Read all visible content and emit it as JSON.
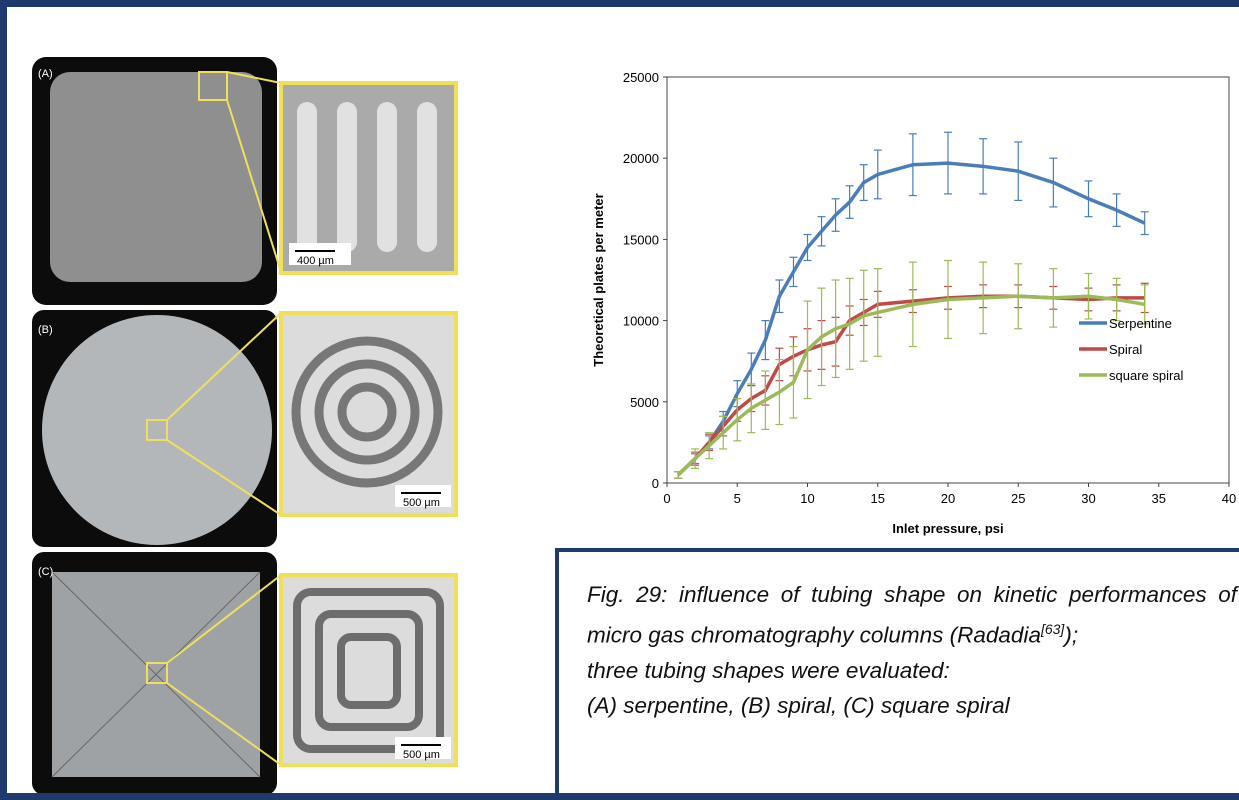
{
  "panels": [
    {
      "label": "(A)",
      "scale": "400 µm"
    },
    {
      "label": "(B)",
      "scale": "500 µm"
    },
    {
      "label": "(C)",
      "scale": "500 µm"
    }
  ],
  "chart_data": {
    "type": "line",
    "x_label": "Inlet pressure, psi",
    "y_label": "Theoretical plates per meter",
    "x": [
      0.8,
      2,
      3,
      4,
      5,
      6,
      7,
      8,
      9,
      10,
      11,
      12,
      13,
      14,
      15,
      17.5,
      20,
      22.5,
      25,
      27.5,
      30,
      32,
      34
    ],
    "xlim": [
      0,
      40
    ],
    "xticks": [
      0,
      5,
      10,
      15,
      20,
      25,
      30,
      35,
      40
    ],
    "ylim": [
      0,
      25000
    ],
    "yticks": [
      0,
      5000,
      10000,
      15000,
      20000,
      25000
    ],
    "legend": "lower right",
    "series": [
      {
        "name": "Serpentine",
        "color": "#4a7ebb",
        "values": [
          500,
          1500,
          2500,
          3800,
          5500,
          7000,
          8800,
          11500,
          13000,
          14500,
          15500,
          16500,
          17300,
          18500,
          19000,
          19600,
          19700,
          19500,
          19200,
          18500,
          17500,
          16800,
          16000
        ],
        "errors": [
          200,
          300,
          400,
          600,
          800,
          1000,
          1200,
          1000,
          900,
          800,
          900,
          1000,
          1000,
          1100,
          1500,
          1900,
          1900,
          1700,
          1800,
          1500,
          1100,
          1000,
          700
        ]
      },
      {
        "name": "Spiral",
        "color": "#be4b48",
        "values": [
          500,
          1500,
          2500,
          3500,
          4500,
          5200,
          5700,
          7300,
          7800,
          8200,
          8500,
          8700,
          10000,
          10500,
          11000,
          11200,
          11400,
          11500,
          11500,
          11400,
          11300,
          11400,
          11400
        ],
        "errors": [
          200,
          400,
          500,
          600,
          700,
          800,
          900,
          1000,
          1200,
          1300,
          1500,
          1500,
          900,
          800,
          800,
          700,
          700,
          700,
          700,
          700,
          700,
          800,
          900
        ]
      },
      {
        "name": "square spiral",
        "color": "#9bbb59",
        "values": [
          500,
          1500,
          2300,
          3100,
          3900,
          4600,
          5100,
          5600,
          6200,
          8200,
          9000,
          9500,
          9800,
          10300,
          10500,
          11000,
          11300,
          11400,
          11500,
          11400,
          11500,
          11300,
          11000
        ],
        "errors": [
          200,
          600,
          800,
          1000,
          1300,
          1500,
          1800,
          2000,
          2200,
          3000,
          3000,
          3000,
          2800,
          2800,
          2700,
          2600,
          2400,
          2200,
          2000,
          1800,
          1400,
          1300,
          1200
        ]
      }
    ]
  },
  "caption": {
    "line1": "Fig. 29: influence of tubing shape on  kinetic performances of micro gas chromatography columns (Radadia",
    "reference": "[63]",
    "line1_end": ");",
    "line2": "three tubing shapes were evaluated:",
    "line3": "(A) serpentine, (B) spiral, (C) square spiral"
  }
}
